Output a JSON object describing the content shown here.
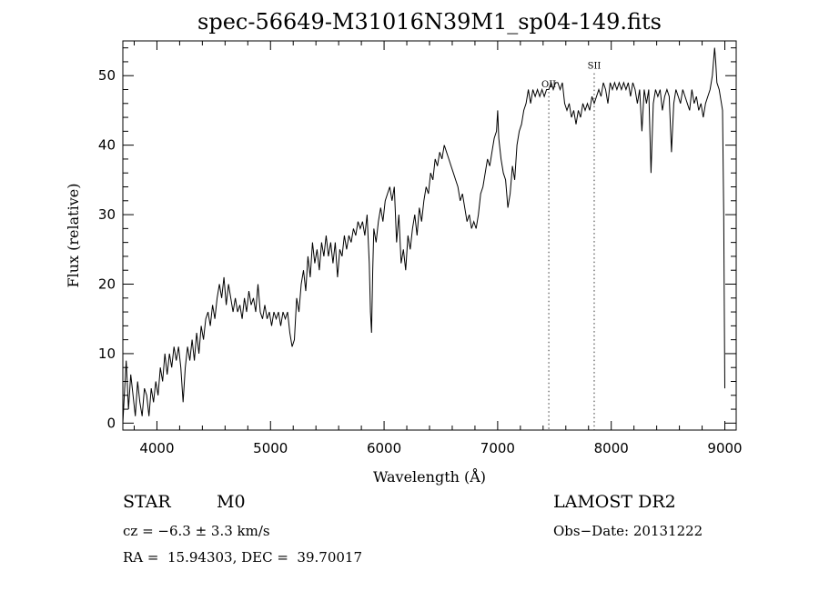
{
  "chart_data": {
    "type": "line",
    "title": "spec-56649-M31016N39M1_sp04-149.fits",
    "xlabel": "Wavelength (Å)",
    "ylabel": "Flux (relative)",
    "xlim": [
      3700,
      9100
    ],
    "ylim": [
      -1,
      55
    ],
    "xticks": [
      4000,
      5000,
      6000,
      7000,
      8000,
      9000
    ],
    "yticks": [
      0,
      10,
      20,
      30,
      40,
      50
    ],
    "line_color": "#000000",
    "annotations": [
      {
        "label": "OII",
        "x": 7450,
        "label_y": 48.3
      },
      {
        "label": "SII",
        "x": 7850,
        "label_y": 51.0
      }
    ],
    "series": [
      {
        "points": [
          [
            3700,
            0
          ],
          [
            3710,
            3
          ],
          [
            3730,
            9
          ],
          [
            3750,
            2
          ],
          [
            3770,
            7
          ],
          [
            3790,
            4
          ],
          [
            3810,
            1
          ],
          [
            3830,
            6
          ],
          [
            3850,
            3
          ],
          [
            3870,
            1
          ],
          [
            3890,
            5
          ],
          [
            3910,
            4
          ],
          [
            3930,
            1
          ],
          [
            3950,
            5
          ],
          [
            3970,
            3
          ],
          [
            3990,
            6
          ],
          [
            4010,
            4
          ],
          [
            4030,
            8
          ],
          [
            4050,
            6
          ],
          [
            4070,
            10
          ],
          [
            4090,
            7
          ],
          [
            4110,
            10
          ],
          [
            4130,
            8
          ],
          [
            4150,
            11
          ],
          [
            4170,
            9
          ],
          [
            4190,
            11
          ],
          [
            4210,
            8
          ],
          [
            4230,
            3
          ],
          [
            4250,
            8
          ],
          [
            4270,
            11
          ],
          [
            4290,
            9
          ],
          [
            4310,
            12
          ],
          [
            4330,
            9
          ],
          [
            4350,
            13
          ],
          [
            4370,
            10
          ],
          [
            4390,
            14
          ],
          [
            4410,
            12
          ],
          [
            4430,
            15
          ],
          [
            4450,
            16
          ],
          [
            4470,
            14
          ],
          [
            4490,
            17
          ],
          [
            4510,
            15
          ],
          [
            4530,
            18
          ],
          [
            4550,
            20
          ],
          [
            4570,
            18
          ],
          [
            4590,
            21
          ],
          [
            4610,
            17
          ],
          [
            4630,
            20
          ],
          [
            4650,
            18
          ],
          [
            4670,
            16
          ],
          [
            4690,
            18
          ],
          [
            4710,
            16
          ],
          [
            4730,
            17
          ],
          [
            4750,
            15
          ],
          [
            4770,
            18
          ],
          [
            4790,
            16
          ],
          [
            4810,
            19
          ],
          [
            4830,
            17
          ],
          [
            4850,
            18
          ],
          [
            4870,
            16
          ],
          [
            4890,
            20
          ],
          [
            4910,
            16
          ],
          [
            4930,
            15
          ],
          [
            4950,
            17
          ],
          [
            4970,
            15
          ],
          [
            4990,
            16
          ],
          [
            5010,
            14
          ],
          [
            5030,
            16
          ],
          [
            5050,
            15
          ],
          [
            5070,
            16
          ],
          [
            5090,
            14
          ],
          [
            5110,
            16
          ],
          [
            5130,
            15
          ],
          [
            5150,
            16
          ],
          [
            5170,
            13
          ],
          [
            5190,
            11
          ],
          [
            5210,
            12
          ],
          [
            5230,
            18
          ],
          [
            5250,
            16
          ],
          [
            5270,
            20
          ],
          [
            5290,
            22
          ],
          [
            5310,
            19
          ],
          [
            5330,
            24
          ],
          [
            5350,
            21
          ],
          [
            5370,
            26
          ],
          [
            5390,
            23
          ],
          [
            5410,
            25
          ],
          [
            5430,
            22
          ],
          [
            5450,
            26
          ],
          [
            5470,
            24
          ],
          [
            5490,
            27
          ],
          [
            5510,
            24
          ],
          [
            5530,
            26
          ],
          [
            5550,
            23
          ],
          [
            5570,
            26
          ],
          [
            5590,
            21
          ],
          [
            5610,
            25
          ],
          [
            5630,
            24
          ],
          [
            5650,
            27
          ],
          [
            5670,
            25
          ],
          [
            5690,
            27
          ],
          [
            5710,
            26
          ],
          [
            5730,
            28
          ],
          [
            5750,
            27
          ],
          [
            5770,
            29
          ],
          [
            5790,
            28
          ],
          [
            5810,
            29
          ],
          [
            5830,
            27
          ],
          [
            5850,
            30
          ],
          [
            5870,
            23
          ],
          [
            5880,
            16
          ],
          [
            5890,
            13
          ],
          [
            5900,
            22
          ],
          [
            5910,
            28
          ],
          [
            5930,
            26
          ],
          [
            5950,
            29
          ],
          [
            5970,
            31
          ],
          [
            5990,
            29
          ],
          [
            6010,
            32
          ],
          [
            6030,
            33
          ],
          [
            6050,
            34
          ],
          [
            6070,
            32
          ],
          [
            6090,
            34
          ],
          [
            6110,
            26
          ],
          [
            6130,
            30
          ],
          [
            6150,
            23
          ],
          [
            6170,
            25
          ],
          [
            6190,
            22
          ],
          [
            6210,
            27
          ],
          [
            6230,
            25
          ],
          [
            6250,
            28
          ],
          [
            6270,
            30
          ],
          [
            6290,
            27
          ],
          [
            6310,
            31
          ],
          [
            6330,
            29
          ],
          [
            6350,
            32
          ],
          [
            6370,
            34
          ],
          [
            6390,
            33
          ],
          [
            6410,
            36
          ],
          [
            6430,
            35
          ],
          [
            6450,
            38
          ],
          [
            6470,
            37
          ],
          [
            6490,
            39
          ],
          [
            6510,
            38
          ],
          [
            6530,
            40
          ],
          [
            6550,
            39
          ],
          [
            6570,
            38
          ],
          [
            6590,
            37
          ],
          [
            6610,
            36
          ],
          [
            6630,
            35
          ],
          [
            6650,
            34
          ],
          [
            6670,
            32
          ],
          [
            6690,
            33
          ],
          [
            6710,
            31
          ],
          [
            6730,
            29
          ],
          [
            6750,
            30
          ],
          [
            6770,
            28
          ],
          [
            6790,
            29
          ],
          [
            6810,
            28
          ],
          [
            6830,
            30
          ],
          [
            6850,
            33
          ],
          [
            6870,
            34
          ],
          [
            6890,
            36
          ],
          [
            6910,
            38
          ],
          [
            6930,
            37
          ],
          [
            6950,
            39
          ],
          [
            6970,
            41
          ],
          [
            6990,
            42
          ],
          [
            7000,
            45
          ],
          [
            7010,
            41
          ],
          [
            7030,
            38
          ],
          [
            7050,
            36
          ],
          [
            7070,
            35
          ],
          [
            7090,
            31
          ],
          [
            7110,
            33
          ],
          [
            7130,
            37
          ],
          [
            7150,
            35
          ],
          [
            7170,
            40
          ],
          [
            7190,
            42
          ],
          [
            7210,
            43
          ],
          [
            7230,
            45
          ],
          [
            7250,
            46
          ],
          [
            7270,
            48
          ],
          [
            7290,
            46
          ],
          [
            7310,
            48
          ],
          [
            7330,
            47
          ],
          [
            7350,
            48
          ],
          [
            7370,
            47
          ],
          [
            7390,
            48
          ],
          [
            7410,
            47
          ],
          [
            7430,
            48
          ],
          [
            7450,
            48
          ],
          [
            7470,
            49
          ],
          [
            7490,
            48
          ],
          [
            7510,
            49
          ],
          [
            7530,
            49
          ],
          [
            7550,
            48
          ],
          [
            7570,
            49
          ],
          [
            7590,
            46
          ],
          [
            7610,
            45
          ],
          [
            7630,
            46
          ],
          [
            7650,
            44
          ],
          [
            7670,
            45
          ],
          [
            7690,
            43
          ],
          [
            7710,
            45
          ],
          [
            7730,
            44
          ],
          [
            7750,
            46
          ],
          [
            7770,
            45
          ],
          [
            7790,
            46
          ],
          [
            7810,
            45
          ],
          [
            7830,
            47
          ],
          [
            7850,
            46
          ],
          [
            7870,
            47
          ],
          [
            7890,
            48
          ],
          [
            7910,
            47
          ],
          [
            7930,
            49
          ],
          [
            7950,
            48
          ],
          [
            7970,
            46
          ],
          [
            7990,
            49
          ],
          [
            8010,
            48
          ],
          [
            8030,
            49
          ],
          [
            8050,
            48
          ],
          [
            8070,
            49
          ],
          [
            8090,
            48
          ],
          [
            8110,
            49
          ],
          [
            8130,
            48
          ],
          [
            8150,
            49
          ],
          [
            8170,
            47
          ],
          [
            8190,
            49
          ],
          [
            8210,
            48
          ],
          [
            8230,
            46
          ],
          [
            8250,
            48
          ],
          [
            8270,
            42
          ],
          [
            8290,
            48
          ],
          [
            8310,
            46
          ],
          [
            8330,
            48
          ],
          [
            8350,
            36
          ],
          [
            8370,
            46
          ],
          [
            8390,
            48
          ],
          [
            8410,
            47
          ],
          [
            8430,
            48
          ],
          [
            8450,
            45
          ],
          [
            8470,
            47
          ],
          [
            8490,
            48
          ],
          [
            8510,
            47
          ],
          [
            8530,
            39
          ],
          [
            8550,
            46
          ],
          [
            8570,
            48
          ],
          [
            8590,
            47
          ],
          [
            8610,
            46
          ],
          [
            8630,
            48
          ],
          [
            8650,
            47
          ],
          [
            8670,
            46
          ],
          [
            8690,
            45
          ],
          [
            8710,
            48
          ],
          [
            8730,
            46
          ],
          [
            8750,
            47
          ],
          [
            8770,
            45
          ],
          [
            8790,
            46
          ],
          [
            8810,
            44
          ],
          [
            8830,
            46
          ],
          [
            8850,
            47
          ],
          [
            8870,
            48
          ],
          [
            8890,
            50
          ],
          [
            8910,
            54
          ],
          [
            8920,
            52
          ],
          [
            8930,
            49
          ],
          [
            8950,
            48
          ],
          [
            8970,
            46
          ],
          [
            8980,
            45
          ],
          [
            8990,
            30
          ],
          [
            9000,
            5
          ]
        ]
      }
    ]
  },
  "info": {
    "object_type": "STAR",
    "subclass": "M0",
    "survey": "LAMOST DR2",
    "cz": "cz = −6.3 ± 3.3 km/s",
    "obs_date": "Obs−Date: 20131222",
    "coords": "RA =  15.94303, DEC =  39.70017"
  }
}
